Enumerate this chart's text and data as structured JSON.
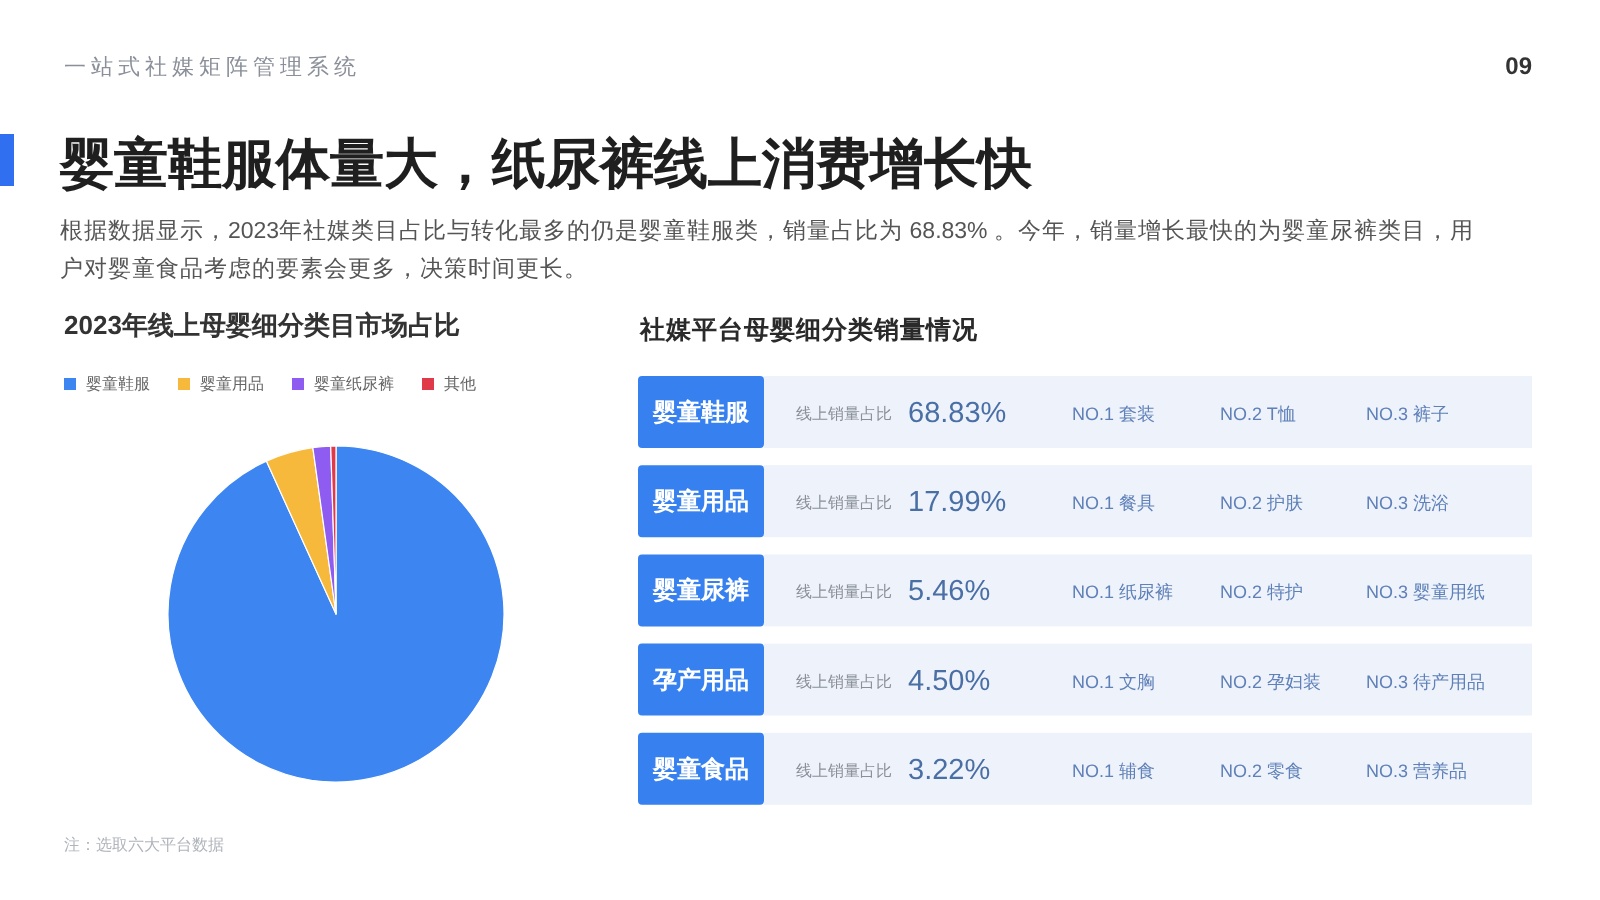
{
  "chart_data": [
    {
      "type": "other",
      "title": "婴童鞋服体量大，纸尿裤线上消费增长快",
      "subtitle": "根据数据显示，2023年社媒类目占比与转化最多的仍是婴童鞋服类，销量占比为 68.83% 。今年，销量增长最快的为婴童尿裤类目，用户对婴童食品考虑的要素会更多，决策时间更长。",
      "annotations": [
        "一站式社媒矩阵管理系统",
        "09"
      ]
    },
    {
      "type": "pie",
      "title": "2023年线上母婴细分类目市场占比",
      "categories": [
        "婴童鞋服",
        "婴童用品",
        "婴童纸尿裤",
        "其他"
      ],
      "values": [
        93.2,
        4.6,
        1.7,
        0.5
      ],
      "colors": [
        "#3d85f1",
        "#f6b93b",
        "#8e5cf0",
        "#e03a4a"
      ],
      "legend": "top left",
      "annotations": [
        "注：选取六大平台数据"
      ]
    },
    {
      "type": "other",
      "title": "社媒平台母婴细分类销量情况",
      "categories": [
        "婴童鞋服",
        "婴童用品",
        "婴童尿裤",
        "孕产用品",
        "婴童食品"
      ],
      "annotations": [
        "线上销量占比",
        "68.83%",
        "NO.1 套装",
        "NO.2 T恤",
        "NO.3 裤子",
        "线上销量占比",
        "17.99%",
        "NO.1 餐具",
        "NO.2 护肤",
        "NO.3 洗浴",
        "线上销量占比",
        "5.46%",
        "NO.1 纸尿裤",
        "NO.2 特护",
        "NO.3 婴童用纸",
        "线上销量占比",
        "4.50%",
        "NO.1 文胸",
        "NO.2 孕妇装",
        "NO.3 待产用品",
        "线上销量占比",
        "3.22%",
        "NO.1 辅食",
        "NO.2 零食",
        "NO.3 营养品"
      ]
    }
  ]
}
